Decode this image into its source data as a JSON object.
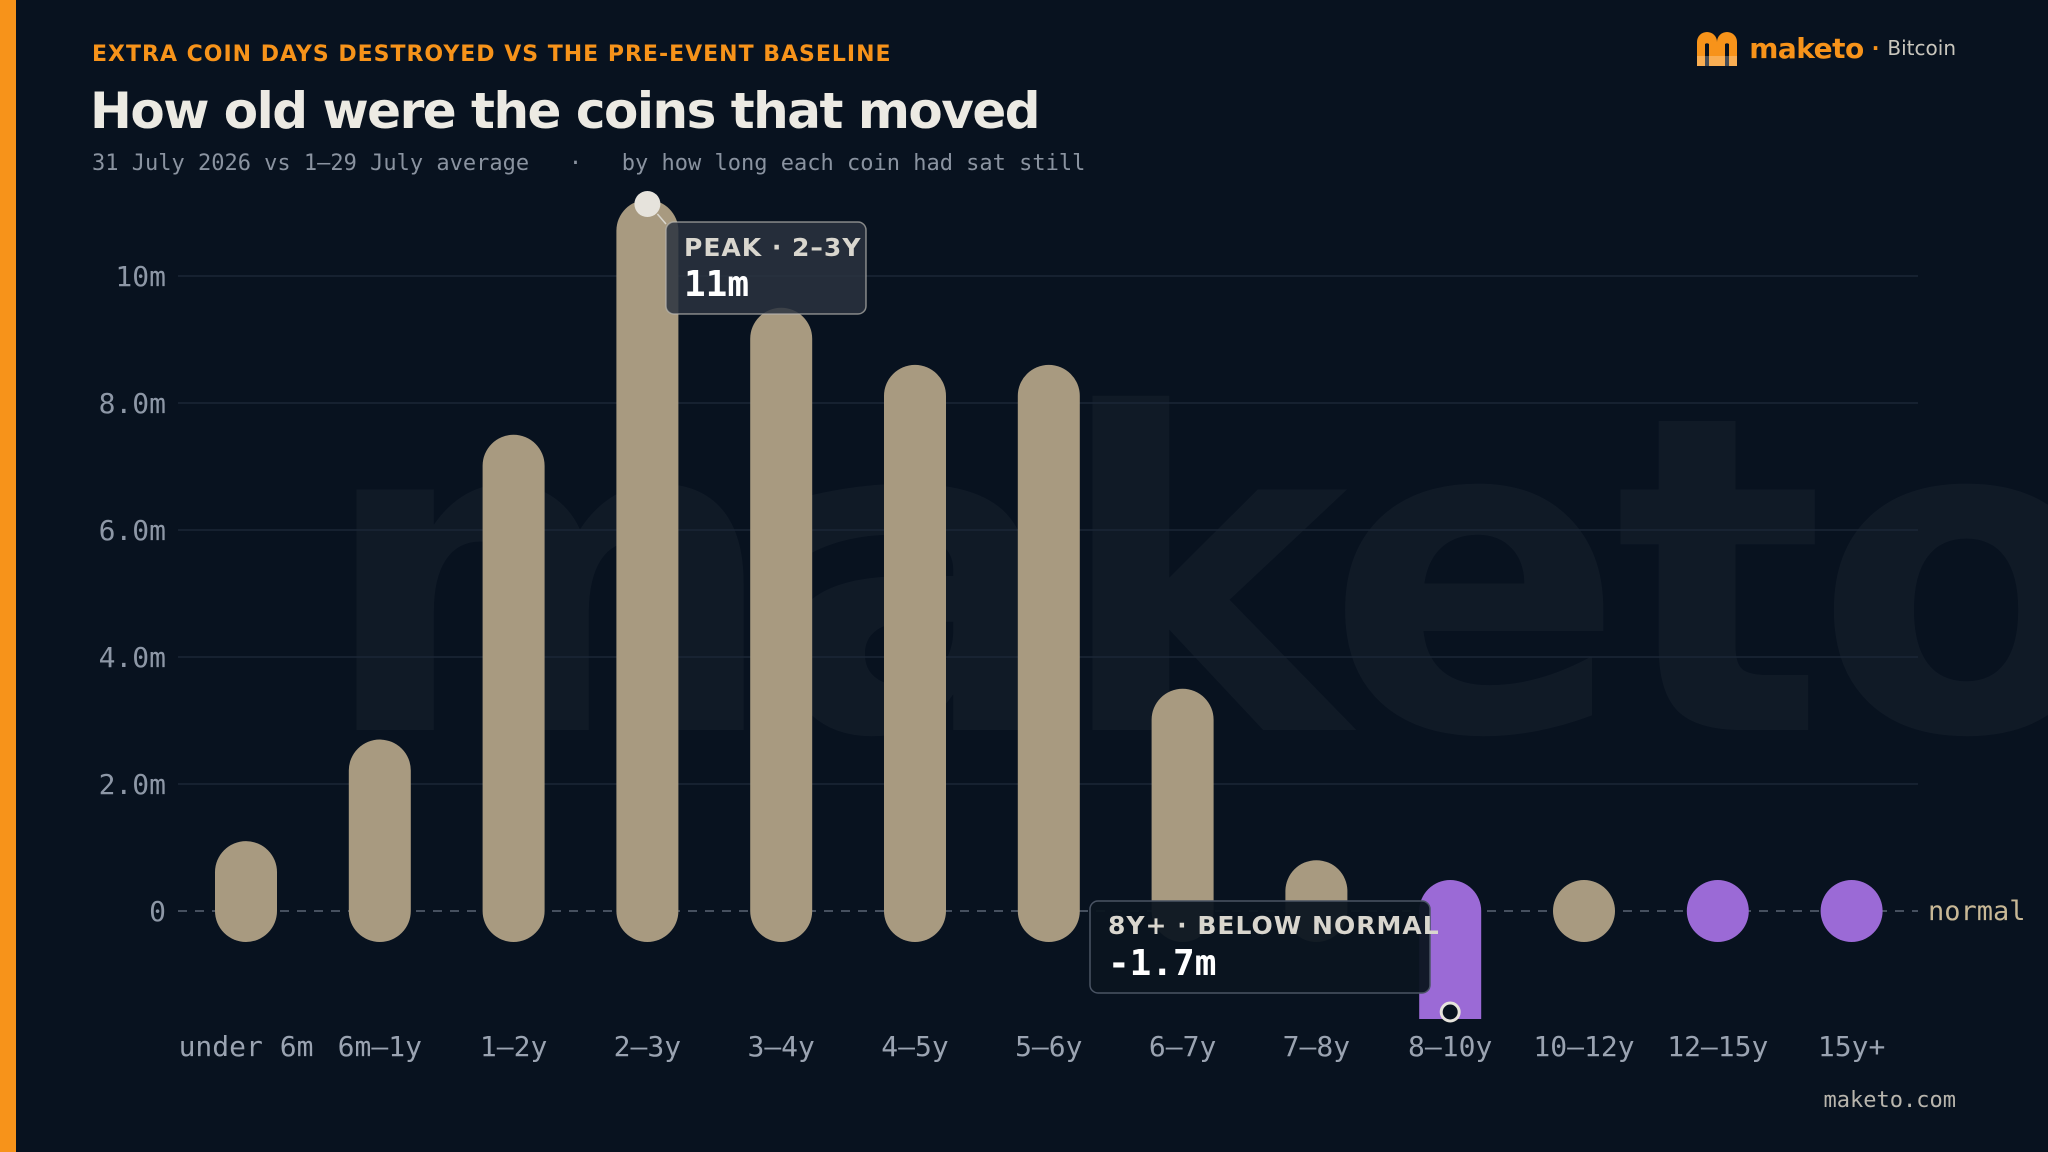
{
  "header": {
    "kicker": "EXTRA COIN DAYS DESTROYED VS THE PRE-EVENT BASELINE",
    "title": "How old were the coins that moved",
    "subtitle": "31 July 2026 vs 1–29 July average   ·   by how long each coin had sat still"
  },
  "logo": {
    "brand": "maketo",
    "separator": "·",
    "product": "Bitcoin"
  },
  "watermark": "maketo",
  "footer": {
    "url": "maketo.com"
  },
  "colors": {
    "positive": "#a89a80",
    "negative": "#9b6ad6",
    "accent": "#f7931a",
    "background": "#08121f"
  },
  "chart_data": {
    "type": "bar",
    "title": "How old were the coins that moved",
    "ylim": [
      -1.8,
      11.2
    ],
    "yticks": [
      {
        "value": 0,
        "label": "0"
      },
      {
        "value": 2,
        "label": "2.0m"
      },
      {
        "value": 4,
        "label": "4.0m"
      },
      {
        "value": 6,
        "label": "6.0m"
      },
      {
        "value": 8,
        "label": "8.0m"
      },
      {
        "value": 10,
        "label": "10m"
      }
    ],
    "grid": true,
    "baseline_label": "normal",
    "unit": "million coin days",
    "categories": [
      "under 6m",
      "6m–1y",
      "1–2y",
      "2–3y",
      "3–4y",
      "4–5y",
      "5–6y",
      "6–7y",
      "7–8y",
      "8–10y",
      "10–12y",
      "12–15y",
      "15y+"
    ],
    "values": [
      1.1,
      2.7,
      7.5,
      11.2,
      9.5,
      8.6,
      8.6,
      3.5,
      0.8,
      -1.7,
      0.1,
      -0.1,
      0.0
    ],
    "annotations": [
      {
        "category": "2–3y",
        "title": "PEAK · 2–3Y",
        "value_label": "11m"
      },
      {
        "category": "8–10y",
        "title": "8Y+ · BELOW NORMAL",
        "value_label": "-1.7m"
      }
    ]
  }
}
